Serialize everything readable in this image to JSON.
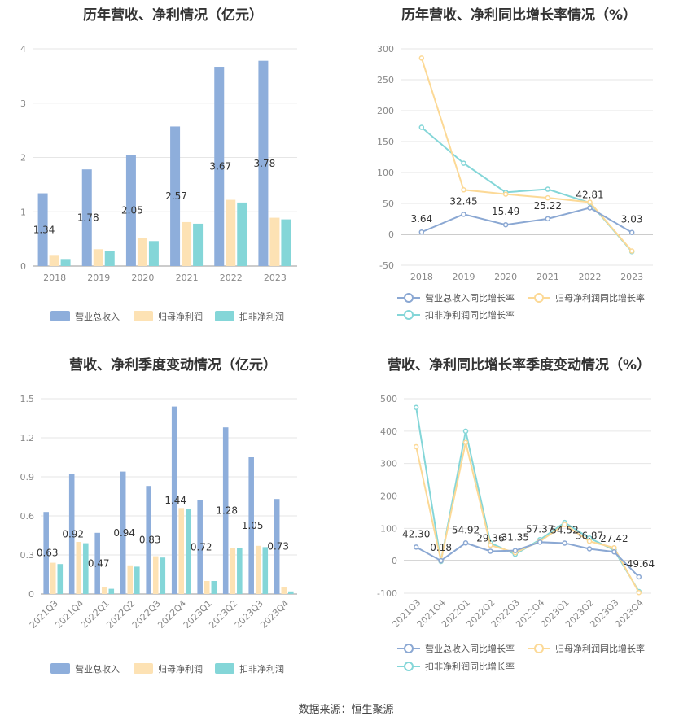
{
  "source_label": "数据来源：恒生聚源",
  "colors": {
    "revenue": "#8eaedb",
    "net_profit": "#fde2b4",
    "deducted_profit": "#84d6d8",
    "revenue_line": "#8ba8d3",
    "net_line": "#fcd996",
    "deducted_line": "#84d6d8",
    "grid": "#e6e6e6",
    "axis_text": "#888888",
    "label_text": "#333333"
  },
  "chart_data": [
    {
      "type": "bar",
      "title": "历年营收、净利情况（亿元）",
      "categories": [
        "2018",
        "2019",
        "2020",
        "2021",
        "2022",
        "2023"
      ],
      "ylim": [
        0,
        4
      ],
      "yticks": [
        "0",
        "1",
        "2",
        "3",
        "4"
      ],
      "series": [
        {
          "name": "营业总收入",
          "values": [
            1.34,
            1.78,
            2.05,
            2.57,
            3.67,
            3.78
          ],
          "labels": [
            "1.34",
            "1.78",
            "2.05",
            "2.57",
            "3.67",
            "3.78"
          ]
        },
        {
          "name": "归母净利润",
          "values": [
            0.19,
            0.31,
            0.51,
            0.81,
            1.22,
            0.89
          ]
        },
        {
          "name": "扣非净利润",
          "values": [
            0.13,
            0.28,
            0.46,
            0.78,
            1.17,
            0.86
          ]
        }
      ],
      "legend": "bottom",
      "grid": true
    },
    {
      "type": "line",
      "title": "历年营收、净利同比增长率情况（%）",
      "categories": [
        "2018",
        "2019",
        "2020",
        "2021",
        "2022",
        "2023"
      ],
      "ylim": [
        -50,
        300
      ],
      "yticks": [
        "-50",
        "0",
        "50",
        "100",
        "150",
        "200",
        "250",
        "300"
      ],
      "series": [
        {
          "name": "营业总收入同比增长率",
          "values": [
            3.64,
            32.45,
            15.49,
            25.22,
            42.81,
            3.03
          ],
          "labels": [
            "3.64",
            "32.45",
            "15.49",
            "25.22",
            "42.81",
            "3.03"
          ]
        },
        {
          "name": "归母净利润同比增长率",
          "values": [
            285,
            72,
            65,
            59,
            52,
            -27
          ]
        },
        {
          "name": "扣非净利润同比增长率",
          "values": [
            173,
            115,
            68,
            73,
            51,
            -28
          ]
        }
      ],
      "legend": "bottom",
      "grid": true
    },
    {
      "type": "bar",
      "title": "营收、净利季度变动情况（亿元）",
      "categories": [
        "2021Q3",
        "2021Q4",
        "2022Q1",
        "2022Q2",
        "2022Q3",
        "2022Q4",
        "2023Q1",
        "2023Q2",
        "2023Q3",
        "2023Q4"
      ],
      "ylim": [
        0,
        1.5
      ],
      "yticks": [
        "0",
        "0.3",
        "0.6",
        "0.9",
        "1.2",
        "1.5"
      ],
      "series": [
        {
          "name": "营业总收入",
          "values": [
            0.63,
            0.92,
            0.47,
            0.94,
            0.83,
            1.44,
            0.72,
            1.28,
            1.05,
            0.73
          ],
          "labels": [
            "0.63",
            "0.92",
            "0.47",
            "0.94",
            "0.83",
            "1.44",
            "0.72",
            "1.28",
            "1.05",
            "0.73"
          ]
        },
        {
          "name": "归母净利润",
          "values": [
            0.24,
            0.4,
            0.05,
            0.22,
            0.29,
            0.66,
            0.1,
            0.35,
            0.37,
            0.05
          ]
        },
        {
          "name": "扣非净利润",
          "values": [
            0.23,
            0.39,
            0.04,
            0.21,
            0.28,
            0.65,
            0.1,
            0.35,
            0.36,
            0.02
          ]
        }
      ],
      "legend": "bottom",
      "grid": true
    },
    {
      "type": "line",
      "title": "营收、净利同比增长率季度变动情况（%）",
      "categories": [
        "2021Q3",
        "2021Q4",
        "2022Q1",
        "2022Q2",
        "2022Q3",
        "2022Q4",
        "2023Q1",
        "2023Q2",
        "2023Q3",
        "2023Q4"
      ],
      "ylim": [
        -100,
        500
      ],
      "yticks": [
        "-100",
        "0",
        "100",
        "200",
        "300",
        "400",
        "500"
      ],
      "series": [
        {
          "name": "营业总收入同比增长率",
          "values": [
            42.3,
            0.18,
            54.92,
            29.36,
            31.35,
            57.37,
            54.52,
            36.87,
            27.42,
            -49.64
          ],
          "labels": [
            "42.30",
            "0.18",
            "54.92",
            "29.36",
            "31.35",
            "57.37",
            "54.52",
            "36.87",
            "27.42",
            "-49.64"
          ]
        },
        {
          "name": "归母净利润同比增长率",
          "values": [
            352,
            0,
            365,
            48,
            25,
            60,
            112,
            60,
            40,
            -98
          ]
        },
        {
          "name": "扣非净利润同比增长率",
          "values": [
            473,
            -2,
            400,
            55,
            20,
            65,
            118,
            70,
            33,
            -95
          ]
        }
      ],
      "legend": "bottom",
      "grid": true
    }
  ]
}
